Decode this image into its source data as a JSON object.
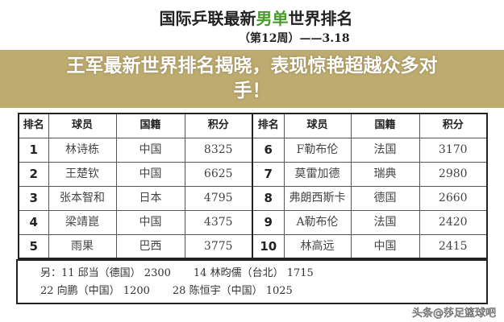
{
  "title": {
    "part1": "国际乒联最新",
    "highlight": "男单",
    "part2": "世界排名",
    "subtitle": "（第12周）——3.18",
    "highlight_color": "#4a9a2a"
  },
  "table": {
    "headers": [
      "排名",
      "球员",
      "国籍",
      "积分",
      "排名",
      "球员",
      "国籍",
      "积分"
    ],
    "rows": [
      {
        "l": {
          "rank": "1",
          "player": "林诗栋",
          "country": "中国",
          "points": "8325"
        },
        "r": {
          "rank": "6",
          "player": "F勒布伦",
          "country": "法国",
          "points": "3170"
        }
      },
      {
        "l": {
          "rank": "2",
          "player": "王楚钦",
          "country": "中国",
          "points": "6625"
        },
        "r": {
          "rank": "7",
          "player": "莫雷加德",
          "country": "瑞典",
          "points": "2980"
        }
      },
      {
        "l": {
          "rank": "3",
          "player": "张本智和",
          "country": "日本",
          "points": "4795"
        },
        "r": {
          "rank": "8",
          "player": "弗朗西斯卡",
          "country": "德国",
          "points": "2660"
        }
      },
      {
        "l": {
          "rank": "4",
          "player": "梁靖崑",
          "country": "中国",
          "points": "4375"
        },
        "r": {
          "rank": "9",
          "player": "A勒布伦",
          "country": "法国",
          "points": "2420"
        }
      },
      {
        "l": {
          "rank": "5",
          "player": "雨果",
          "country": "巴西",
          "points": "3775"
        },
        "r": {
          "rank": "10",
          "player": "林高远",
          "country": "中国",
          "points": "2415"
        }
      }
    ]
  },
  "notes": {
    "line1": [
      "另：11 邱当（德国） 2300",
      "14 林昀儒（台北） 1715"
    ],
    "line2": [
      "22 向鹏（中国） 1200",
      "28 陈恒宇（中国） 1025"
    ]
  },
  "overlay": {
    "headline": "王军最新世界排名揭晓，表现惊艳超越众多对手！",
    "color": "#b9a564"
  },
  "watermark": "头条@莎足篮球吧"
}
